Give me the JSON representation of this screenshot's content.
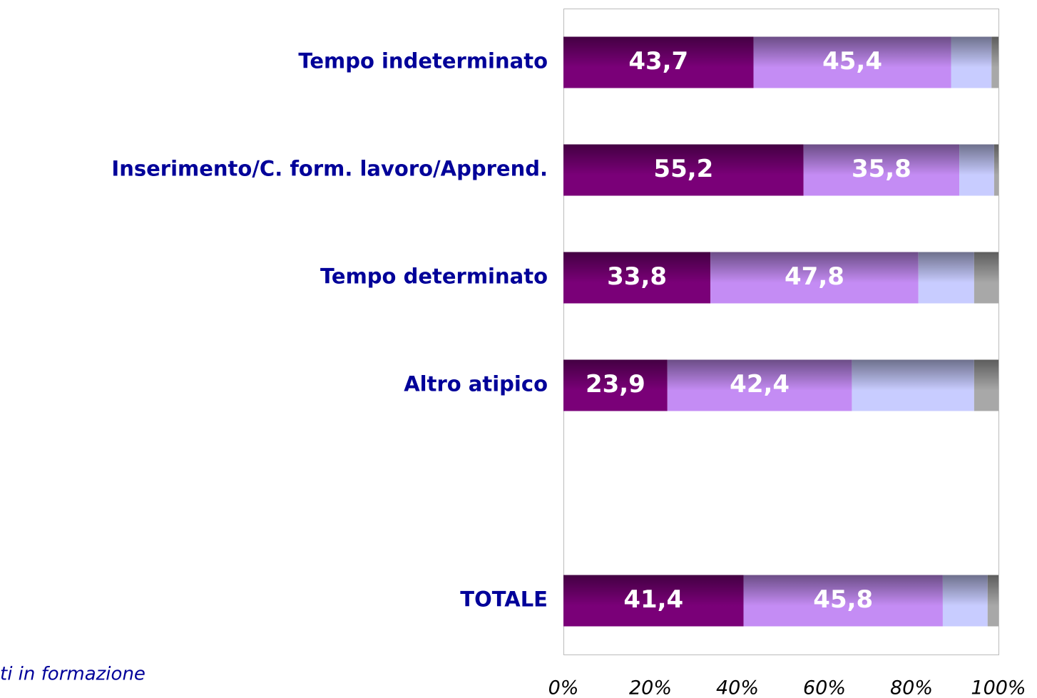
{
  "chart_data": {
    "type": "stacked_bar_horizontal",
    "categories": [
      "Tempo indeterminato",
      "Inserimento/C. form. lavoro/Apprend.",
      "Tempo determinato",
      "Altro atipico",
      null,
      "TOTALE"
    ],
    "series": [
      {
        "color": "#7a0078",
        "values": [
          43.7,
          55.2,
          33.8,
          23.9,
          null,
          41.4
        ],
        "value_labels": [
          "43,7",
          "55,2",
          "33,8",
          "23,9",
          null,
          "41,4"
        ]
      },
      {
        "color": "#c48cf4",
        "values": [
          45.4,
          35.8,
          47.8,
          42.4,
          null,
          45.8
        ],
        "value_labels": [
          "45,4",
          "35,8",
          "47,8",
          "42,4",
          null,
          "45,8"
        ]
      },
      {
        "color": "#c8ccff",
        "values": [
          9.3,
          8.0,
          12.8,
          28.1,
          null,
          10.3
        ]
      },
      {
        "color": "#a8a8a8",
        "values": [
          1.6,
          1.0,
          5.6,
          5.6,
          null,
          2.5
        ]
      }
    ],
    "xlim": [
      0,
      100
    ],
    "xticks": [
      {
        "value": 0,
        "label": "0%"
      },
      {
        "value": 20,
        "label": "20%"
      },
      {
        "value": 40,
        "label": "40%"
      },
      {
        "value": 60,
        "label": "60%"
      },
      {
        "value": 80,
        "label": "80%"
      },
      {
        "value": 100,
        "label": "100%"
      }
    ],
    "annotation": "ti in formazione"
  }
}
